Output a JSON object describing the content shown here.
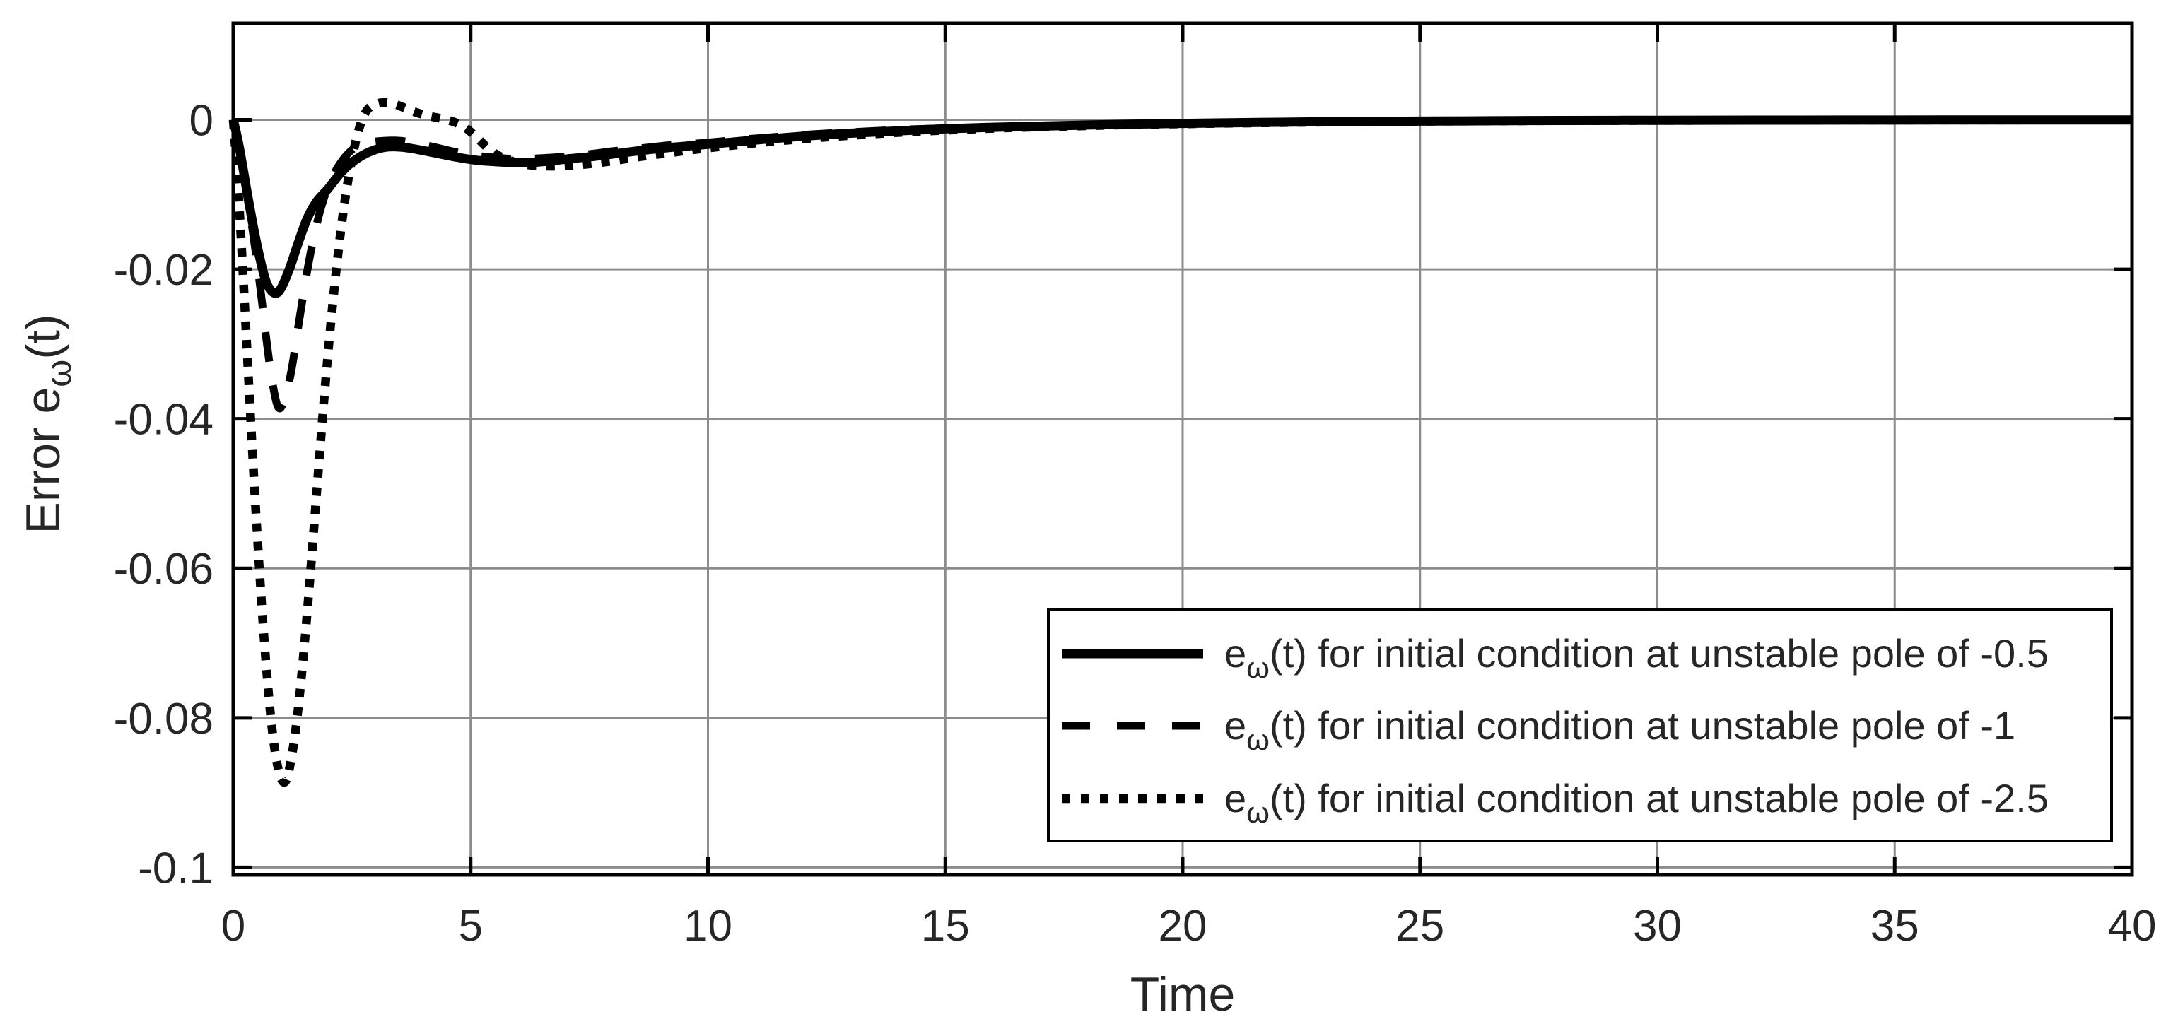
{
  "chart_data": {
    "type": "line",
    "title": "",
    "xlabel": "Time",
    "ylabel": "Error e_ω(t)",
    "ylabel_parts": {
      "pre": "Error e",
      "sub": "ω",
      "post": "(t)"
    },
    "xlim": [
      0,
      40
    ],
    "ylim": [
      -0.101,
      0.0129
    ],
    "grid": true,
    "box": true,
    "tick_dir": "in",
    "xticks": {
      "values": [
        0,
        5,
        10,
        15,
        20,
        25,
        30,
        35,
        40
      ],
      "labels": [
        "0",
        "5",
        "10",
        "15",
        "20",
        "25",
        "30",
        "35",
        "40"
      ]
    },
    "yticks": {
      "values": [
        0,
        -0.02,
        -0.04,
        -0.06,
        -0.08,
        -0.1
      ],
      "labels": [
        "0",
        "-0.02",
        "-0.04",
        "-0.06",
        "-0.08",
        "-0.1"
      ]
    },
    "colors": {
      "line": "#000000",
      "grid": "#8c8c8c",
      "axis": "#000000",
      "text": "#262626",
      "background": "#ffffff"
    },
    "legend": {
      "position": "lower right",
      "entries": [
        {
          "label_pre": "e",
          "label_sub": "ω",
          "label_post": "(t) for initial condition at unstable pole of -0.5",
          "full_label": "e_ω(t) for initial condition at unstable pole of -0.5",
          "line_style": "solid"
        },
        {
          "label_pre": "e",
          "label_sub": "ω",
          "label_post": "(t) for initial condition at unstable pole of -1",
          "full_label": "e_ω(t) for initial condition at unstable pole of -1",
          "line_style": "dashed"
        },
        {
          "label_pre": "e",
          "label_sub": "ω",
          "label_post": "(t) for initial condition at unstable pole of -2.5",
          "full_label": "e_ω(t) for initial condition at unstable pole of -2.5",
          "line_style": "dotted"
        }
      ]
    },
    "series": [
      {
        "name": "e_ω(t) for initial condition at unstable pole of -0.5",
        "style": "solid",
        "points": [
          [
            0,
            0
          ],
          [
            0.1,
            -0.0028
          ],
          [
            0.2,
            -0.0063
          ],
          [
            0.3,
            -0.01
          ],
          [
            0.45,
            -0.0152
          ],
          [
            0.6,
            -0.0196
          ],
          [
            0.72,
            -0.0221
          ],
          [
            0.87,
            -0.0232
          ],
          [
            1.0,
            -0.0226
          ],
          [
            1.18,
            -0.02
          ],
          [
            1.35,
            -0.0168
          ],
          [
            1.55,
            -0.0133
          ],
          [
            1.75,
            -0.011
          ],
          [
            2.0,
            -0.0092
          ],
          [
            2.25,
            -0.0072
          ],
          [
            2.5,
            -0.0057
          ],
          [
            2.8,
            -0.0045
          ],
          [
            3.1,
            -0.0038
          ],
          [
            3.35,
            -0.0036
          ],
          [
            3.6,
            -0.0037
          ],
          [
            3.9,
            -0.004
          ],
          [
            4.3,
            -0.0045
          ],
          [
            4.7,
            -0.005
          ],
          [
            5.1,
            -0.0054
          ],
          [
            5.5,
            -0.0056
          ],
          [
            5.9,
            -0.0057
          ],
          [
            6.3,
            -0.0057
          ],
          [
            6.7,
            -0.0055
          ],
          [
            7.1,
            -0.0052
          ],
          [
            7.6,
            -0.0049
          ],
          [
            8.1,
            -0.0045
          ],
          [
            8.6,
            -0.0041
          ],
          [
            9.2,
            -0.0037
          ],
          [
            9.8,
            -0.0034
          ],
          [
            10.5,
            -0.003
          ],
          [
            11.2,
            -0.0026
          ],
          [
            12,
            -0.0022
          ],
          [
            13,
            -0.0018
          ],
          [
            14,
            -0.0015
          ],
          [
            15,
            -0.0012
          ],
          [
            16,
            -0.001
          ],
          [
            17,
            -0.00085
          ],
          [
            18,
            -0.0007
          ],
          [
            19,
            -0.00058
          ],
          [
            20,
            -0.00048
          ],
          [
            21,
            -0.0004
          ],
          [
            22,
            -0.00033
          ],
          [
            23,
            -0.00027
          ],
          [
            24,
            -0.00022
          ],
          [
            25,
            -0.00018
          ],
          [
            26,
            -0.00015
          ],
          [
            27,
            -0.00012
          ],
          [
            28,
            -0.0001
          ],
          [
            30,
            -7e-05
          ],
          [
            32,
            -5e-05
          ],
          [
            34,
            -4e-05
          ],
          [
            36,
            -3e-05
          ],
          [
            38,
            -2e-05
          ],
          [
            40,
            -2e-05
          ]
        ]
      },
      {
        "name": "e_ω(t) for initial condition at unstable pole of -1",
        "style": "dashed",
        "points": [
          [
            0,
            0
          ],
          [
            0.12,
            -0.0035
          ],
          [
            0.25,
            -0.0085
          ],
          [
            0.4,
            -0.0145
          ],
          [
            0.55,
            -0.0215
          ],
          [
            0.7,
            -0.0295
          ],
          [
            0.82,
            -0.035
          ],
          [
            0.95,
            -0.0385
          ],
          [
            1.08,
            -0.0374
          ],
          [
            1.22,
            -0.0337
          ],
          [
            1.38,
            -0.0272
          ],
          [
            1.55,
            -0.0205
          ],
          [
            1.72,
            -0.015
          ],
          [
            1.9,
            -0.0107
          ],
          [
            2.1,
            -0.0075
          ],
          [
            2.35,
            -0.005
          ],
          [
            2.6,
            -0.0036
          ],
          [
            2.9,
            -0.003
          ],
          [
            3.2,
            -0.0028
          ],
          [
            3.5,
            -0.0028
          ],
          [
            3.8,
            -0.0031
          ],
          [
            4.2,
            -0.0036
          ],
          [
            4.6,
            -0.0042
          ],
          [
            5.0,
            -0.0047
          ],
          [
            5.4,
            -0.005
          ],
          [
            5.8,
            -0.0052
          ],
          [
            6.2,
            -0.0052
          ],
          [
            6.6,
            -0.0051
          ],
          [
            7.0,
            -0.0049
          ],
          [
            7.5,
            -0.0046
          ],
          [
            8.0,
            -0.0042
          ],
          [
            8.6,
            -0.0038
          ],
          [
            9.2,
            -0.0034
          ],
          [
            9.9,
            -0.0031
          ],
          [
            10.6,
            -0.0027
          ],
          [
            11.4,
            -0.0023
          ],
          [
            12.3,
            -0.0019
          ],
          [
            13.2,
            -0.0016
          ],
          [
            14.2,
            -0.0013
          ],
          [
            15.2,
            -0.0011
          ],
          [
            16.2,
            -0.0009
          ],
          [
            17.2,
            -0.00075
          ],
          [
            18.2,
            -0.00062
          ],
          [
            19.2,
            -0.00052
          ],
          [
            20.2,
            -0.00043
          ],
          [
            21.5,
            -0.00034
          ],
          [
            23,
            -0.00026
          ],
          [
            24.5,
            -0.0002
          ],
          [
            26,
            -0.00016
          ],
          [
            28,
            -0.00011
          ],
          [
            30,
            -8e-05
          ],
          [
            32,
            -6e-05
          ],
          [
            34,
            -4e-05
          ],
          [
            36,
            -3e-05
          ],
          [
            38,
            -3e-05
          ],
          [
            40,
            -2e-05
          ]
        ]
      },
      {
        "name": "e_ω(t) for initial condition at unstable pole of -2.5",
        "style": "dotted",
        "points": [
          [
            0,
            0
          ],
          [
            0.1,
            -0.009
          ],
          [
            0.2,
            -0.02
          ],
          [
            0.3,
            -0.032
          ],
          [
            0.4,
            -0.044
          ],
          [
            0.5,
            -0.055
          ],
          [
            0.6,
            -0.065
          ],
          [
            0.7,
            -0.0735
          ],
          [
            0.8,
            -0.0805
          ],
          [
            0.9,
            -0.0853
          ],
          [
            1.0,
            -0.088
          ],
          [
            1.1,
            -0.0885
          ],
          [
            1.2,
            -0.0862
          ],
          [
            1.33,
            -0.0808
          ],
          [
            1.47,
            -0.0722
          ],
          [
            1.62,
            -0.061
          ],
          [
            1.77,
            -0.0487
          ],
          [
            1.92,
            -0.0368
          ],
          [
            2.07,
            -0.0262
          ],
          [
            2.22,
            -0.0172
          ],
          [
            2.37,
            -0.01
          ],
          [
            2.52,
            -0.0046
          ],
          [
            2.67,
            -0.0008
          ],
          [
            2.82,
            0.0013
          ],
          [
            3.0,
            0.0021
          ],
          [
            3.2,
            0.0023
          ],
          [
            3.4,
            0.0021
          ],
          [
            3.6,
            0.0016
          ],
          [
            3.8,
            0.0011
          ],
          [
            4.05,
            0.0006
          ],
          [
            4.35,
            0.0002
          ],
          [
            4.65,
            -0.0003
          ],
          [
            4.9,
            -0.0011
          ],
          [
            5.15,
            -0.0025
          ],
          [
            5.4,
            -0.004
          ],
          [
            5.65,
            -0.005
          ],
          [
            5.95,
            -0.0057
          ],
          [
            6.3,
            -0.0061
          ],
          [
            6.7,
            -0.0062
          ],
          [
            7.1,
            -0.0061
          ],
          [
            7.5,
            -0.0059
          ],
          [
            8.0,
            -0.0055
          ],
          [
            8.5,
            -0.005
          ],
          [
            9.1,
            -0.0045
          ],
          [
            9.7,
            -0.004
          ],
          [
            10.4,
            -0.0035
          ],
          [
            11.2,
            -0.003
          ],
          [
            12.1,
            -0.0025
          ],
          [
            13,
            -0.0021
          ],
          [
            14,
            -0.0017
          ],
          [
            15,
            -0.0014
          ],
          [
            16,
            -0.00115
          ],
          [
            17,
            -0.00095
          ],
          [
            18,
            -0.0008
          ],
          [
            19,
            -0.00065
          ],
          [
            20,
            -0.00055
          ],
          [
            21,
            -0.00046
          ],
          [
            22,
            -0.00038
          ],
          [
            23,
            -0.00031
          ],
          [
            24,
            -0.00026
          ],
          [
            25,
            -0.00021
          ],
          [
            26,
            -0.00017
          ],
          [
            28,
            -0.00012
          ],
          [
            30,
            -9e-05
          ],
          [
            32,
            -7e-05
          ],
          [
            34,
            -5e-05
          ],
          [
            36,
            -4e-05
          ],
          [
            38,
            -3e-05
          ],
          [
            40,
            -3e-05
          ]
        ]
      }
    ]
  }
}
